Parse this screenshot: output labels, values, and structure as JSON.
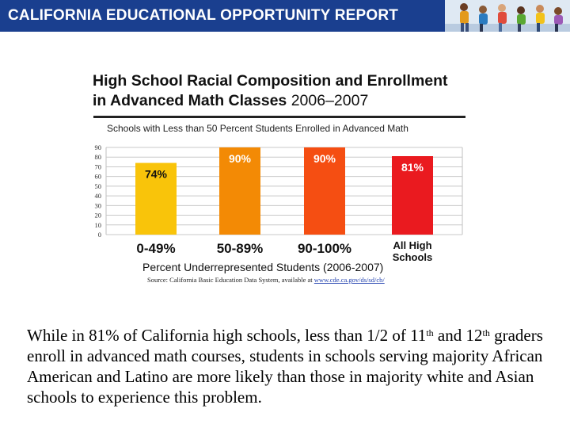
{
  "header": {
    "title": "CALIFORNIA EDUCATIONAL OPPORTUNITY REPORT",
    "banner_color": "#1a3f8f",
    "photo_icon": "children-photo-icon"
  },
  "chart_data": {
    "type": "bar",
    "title_line1": "High School Racial Composition and Enrollment",
    "title_line2_bold": "in Advanced Math Classes",
    "title_line2_year": "2006–2007",
    "subtitle": "Schools with Less than 50 Percent Students Enrolled in Advanced Math",
    "categories": [
      "0-49%",
      "50-89%",
      "90-100%",
      "All High Schools"
    ],
    "category_lines": [
      [
        "0-49%"
      ],
      [
        "50-89%"
      ],
      [
        "90-100%"
      ],
      [
        "All High",
        "Schools"
      ]
    ],
    "values": [
      74,
      90,
      90,
      81
    ],
    "value_labels": [
      "74%",
      "90%",
      "90%",
      "81%"
    ],
    "colors": [
      "#f9c40a",
      "#f38a05",
      "#f54e12",
      "#ea1a1f"
    ],
    "label_colors": [
      "#111111",
      "#ffffff",
      "#ffffff",
      "#ffffff"
    ],
    "y_ticks": [
      "0",
      "10",
      "20",
      "30",
      "40",
      "50",
      "60",
      "70",
      "80",
      "90"
    ],
    "ylim": [
      0,
      90
    ],
    "grid": true,
    "xlabel": "Percent Underrepresented Students (2006-2007)",
    "source_prefix": "Source: California Basic Education Data System, available at ",
    "source_link": "www.cde.ca.gov/ds/sd/cb/"
  },
  "body": {
    "p1": "While in 81% of California high schools, less than 1/2 of 11",
    "sup1": "th",
    "p2": " and 12",
    "sup2": "th",
    "p3": " graders enroll in advanced math courses, students in schools serving majority African American and Latino are more likely than those in majority white and Asian schools to experience this problem."
  }
}
